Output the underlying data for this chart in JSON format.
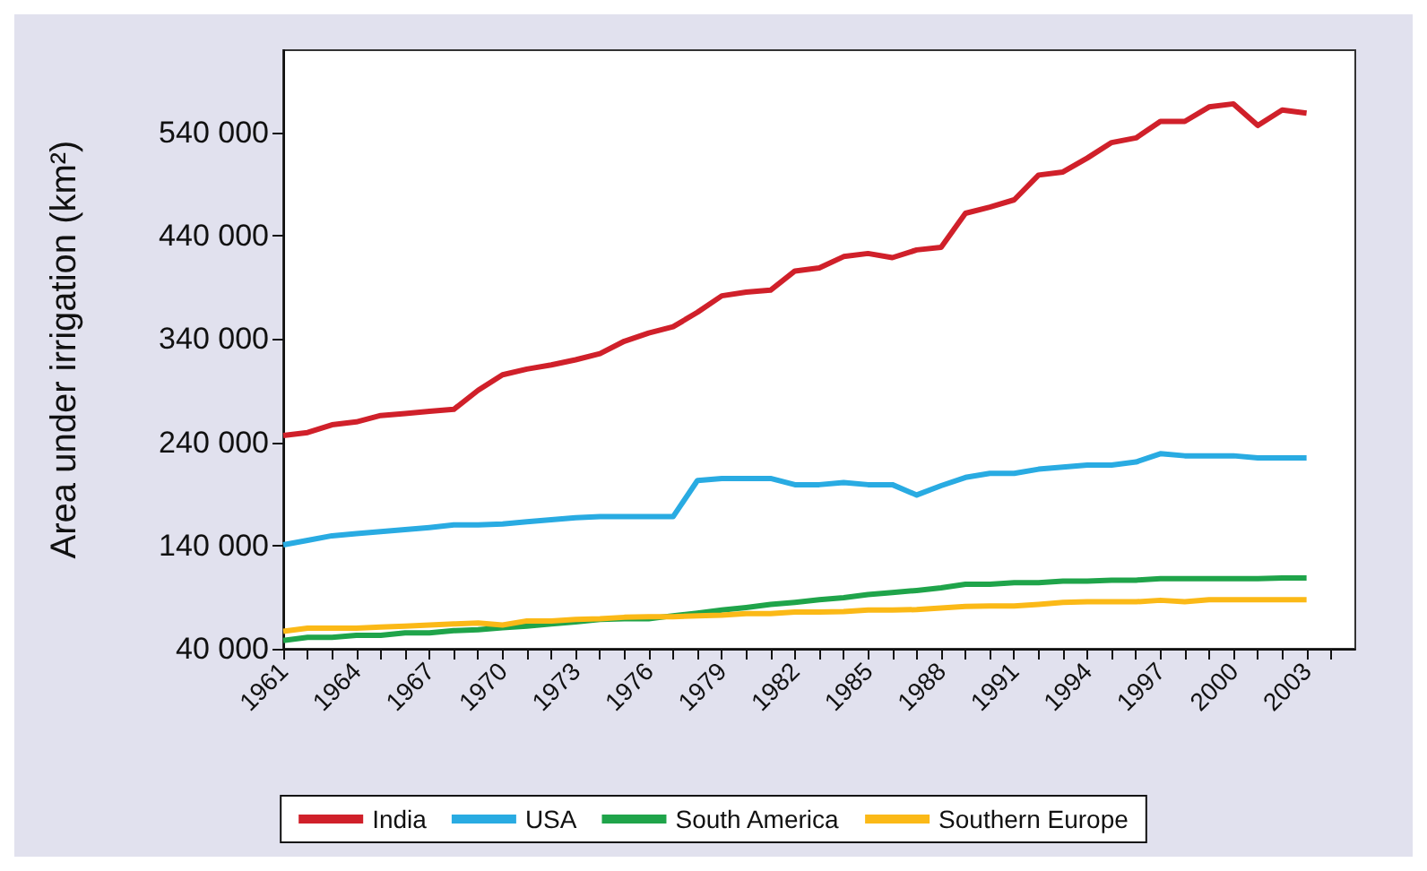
{
  "chart_data": {
    "type": "line",
    "ylabel": "Area under irrigation (km²)",
    "x": [
      1961,
      1962,
      1963,
      1964,
      1965,
      1966,
      1967,
      1968,
      1969,
      1970,
      1971,
      1972,
      1973,
      1974,
      1975,
      1976,
      1977,
      1978,
      1979,
      1980,
      1981,
      1982,
      1983,
      1984,
      1985,
      1986,
      1987,
      1988,
      1989,
      1990,
      1991,
      1992,
      1993,
      1994,
      1995,
      1996,
      1997,
      1998,
      1999,
      2000,
      2001,
      2002,
      2003
    ],
    "series": [
      {
        "name": "India",
        "color": "#d0202a",
        "values": [
          246700,
          249500,
          257000,
          259800,
          266000,
          268000,
          270000,
          272000,
          290500,
          305500,
          311000,
          315000,
          320000,
          326000,
          338000,
          346000,
          352000,
          366000,
          382000,
          385500,
          387500,
          406000,
          409000,
          420000,
          423000,
          419000,
          426500,
          429000,
          462000,
          468000,
          475000,
          499000,
          502000,
          515500,
          530500,
          535000,
          551000,
          551000,
          565000,
          568000,
          547000,
          562000,
          559000
        ]
      },
      {
        "name": "USA",
        "color": "#29abe2",
        "values": [
          140700,
          145000,
          149500,
          151500,
          153500,
          155500,
          157500,
          160000,
          160000,
          161000,
          163000,
          165000,
          167000,
          168000,
          168000,
          168000,
          168000,
          203000,
          205000,
          205000,
          205000,
          199000,
          199000,
          201000,
          199000,
          199000,
          189000,
          198000,
          206000,
          210000,
          210000,
          214000,
          216000,
          218000,
          218000,
          221000,
          229000,
          227000,
          227000,
          227000,
          225000,
          225000,
          225000
        ]
      },
      {
        "name": "South America",
        "color": "#1fa44a",
        "values": [
          48000,
          51000,
          51000,
          53000,
          53000,
          55500,
          55500,
          57500,
          58500,
          60500,
          62000,
          64000,
          66000,
          68500,
          69000,
          69000,
          72000,
          74500,
          77500,
          80000,
          83000,
          85000,
          87500,
          89500,
          92500,
          94500,
          96500,
          99000,
          102500,
          102500,
          104000,
          104000,
          105500,
          105500,
          106500,
          106500,
          108000,
          108000,
          108000,
          108000,
          108000,
          108500,
          108500
        ]
      },
      {
        "name": "Southern Europe",
        "color": "#fbb917",
        "values": [
          57000,
          60000,
          60000,
          60000,
          61000,
          62000,
          63000,
          64000,
          65000,
          63000,
          67000,
          67000,
          68500,
          69000,
          70500,
          71000,
          71000,
          72000,
          72500,
          74000,
          74000,
          75500,
          75500,
          76000,
          77500,
          77500,
          78000,
          79500,
          81000,
          81500,
          81500,
          83000,
          85000,
          85500,
          85500,
          85500,
          87000,
          85500,
          87500,
          87500,
          87500,
          87500,
          87500
        ]
      }
    ],
    "xlim": [
      1961,
      2005
    ],
    "xticks": [
      1961,
      {
        "value": 1962,
        "label": null
      },
      {
        "value": 1963,
        "label": null
      },
      1964,
      {
        "value": 1965,
        "label": null
      },
      {
        "value": 1966,
        "label": null
      },
      1967,
      {
        "value": 1968,
        "label": null
      },
      {
        "value": 1969,
        "label": null
      },
      1970,
      {
        "value": 1971,
        "label": null
      },
      {
        "value": 1972,
        "label": null
      },
      1973,
      {
        "value": 1974,
        "label": null
      },
      {
        "value": 1975,
        "label": null
      },
      1976,
      {
        "value": 1977,
        "label": null
      },
      {
        "value": 1978,
        "label": null
      },
      1979,
      {
        "value": 1980,
        "label": null
      },
      {
        "value": 1981,
        "label": null
      },
      1982,
      {
        "value": 1983,
        "label": null
      },
      {
        "value": 1984,
        "label": null
      },
      1985,
      {
        "value": 1986,
        "label": null
      },
      {
        "value": 1987,
        "label": null
      },
      1988,
      {
        "value": 1989,
        "label": null
      },
      {
        "value": 1990,
        "label": null
      },
      1991,
      {
        "value": 1992,
        "label": null
      },
      {
        "value": 1993,
        "label": null
      },
      1994,
      {
        "value": 1995,
        "label": null
      },
      {
        "value": 1996,
        "label": null
      },
      1997,
      {
        "value": 1998,
        "label": null
      },
      {
        "value": 1999,
        "label": null
      },
      2000,
      {
        "value": 2001,
        "label": null
      },
      {
        "value": 2002,
        "label": null
      },
      2003,
      {
        "value": 2004,
        "label": null
      }
    ],
    "ylim": [
      40000,
      620000
    ],
    "yticks": [
      {
        "value": 40000,
        "label": "40 000"
      },
      {
        "value": 140000,
        "label": "140 000"
      },
      {
        "value": 240000,
        "label": "240 000"
      },
      {
        "value": 340000,
        "label": "340 000"
      },
      {
        "value": 440000,
        "label": "440 000"
      },
      {
        "value": 540000,
        "label": "540 000"
      }
    ],
    "grid": false,
    "legend": "bottom",
    "marker": "none",
    "line_style": "solid"
  }
}
